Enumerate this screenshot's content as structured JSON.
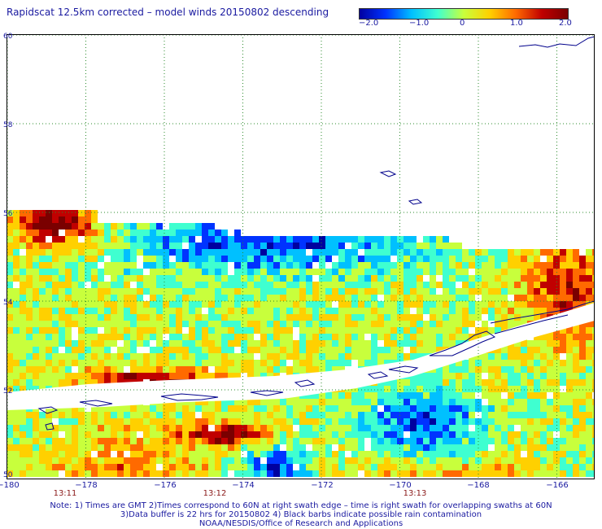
{
  "title": "Rapidscat 12.5km corrected – model winds 20150802 descending",
  "colorbar": {
    "labels": [
      "−2.0",
      "−1.0",
      "0",
      "1.0",
      "2.0"
    ],
    "min": -2.0,
    "max": 2.0,
    "colors": [
      "#0000a0",
      "#0033ff",
      "#00c0ff",
      "#3fffd0",
      "#c8ff3c",
      "#ffd000",
      "#ff6a00",
      "#c00000",
      "#7a0000"
    ]
  },
  "map": {
    "lat_labels": [
      "60",
      "58",
      "56",
      "54",
      "52",
      "50"
    ],
    "lon_labels": [
      "−180",
      "−178",
      "−176",
      "−174",
      "−172",
      "−170",
      "−168",
      "−166"
    ],
    "lat_range": [
      50,
      60
    ],
    "lon_range": [
      -180,
      -165
    ],
    "grid": true,
    "coastline_color": "#00008b"
  },
  "times": [
    "13:11",
    "13:12",
    "13:13"
  ],
  "notes": [
    "Note: 1) Times are GMT 2)Times correspond to 60N at right swath edge – time is right swath for overlapping swaths at 60N",
    "3)Data buffer is 22 hrs for 20150802 4) Black barbs indicate possible rain contamination",
    "NOAA/NESDIS/Office of Research and Applications"
  ]
}
